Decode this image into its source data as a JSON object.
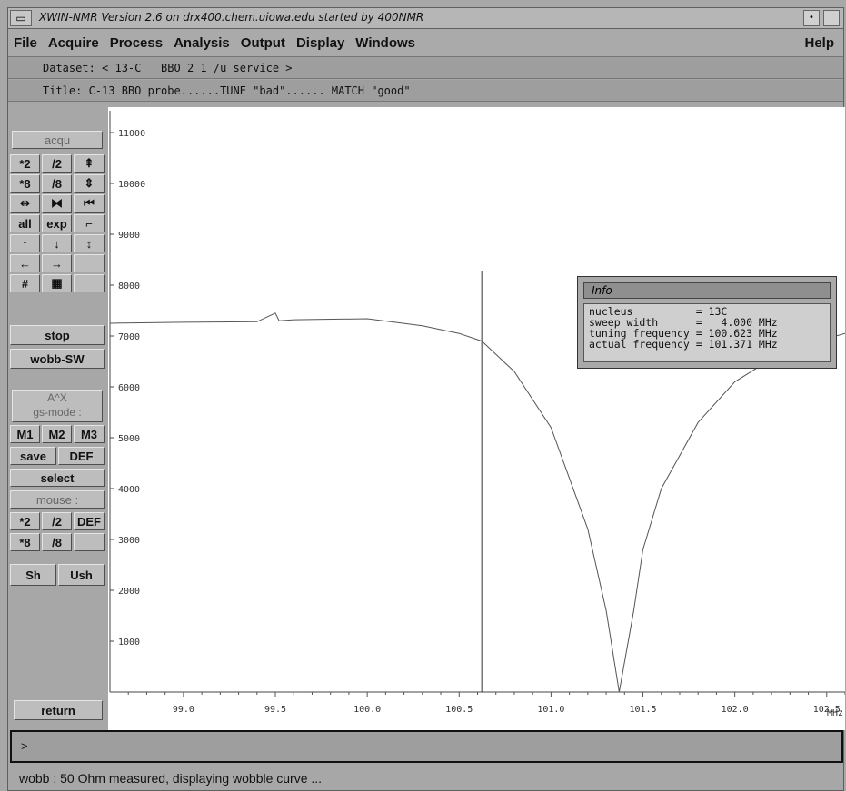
{
  "window": {
    "title": "XWIN-NMR Version  2.6 on drx400.chem.uiowa.edu started by 400NMR",
    "menu_glyph": "▭",
    "minimize_glyph": "•"
  },
  "menu": {
    "items": [
      "File",
      "Acquire",
      "Process",
      "Analysis",
      "Output",
      "Display",
      "Windows"
    ],
    "help": "Help"
  },
  "dataset_line": "Dataset: < 13-C___BBO 2 1 /u service >",
  "title_line": "Title: C-13 BBO probe......TUNE \"bad\"...... MATCH \"good\"",
  "sidebar": {
    "acqu": "acqu",
    "row1": [
      "*2",
      "/2",
      "⇞"
    ],
    "row2": [
      "*8",
      "/8",
      "⇕"
    ],
    "row3": [
      "⇹",
      "⧓",
      "⏮"
    ],
    "row4": [
      "all",
      "exp",
      "⌐"
    ],
    "row5": [
      "↑",
      "↓",
      "↕"
    ],
    "row6": [
      "←",
      "→",
      ""
    ],
    "row7": [
      "#",
      "▦",
      ""
    ],
    "stop": "stop",
    "wobb": "wobb-SW",
    "gs_line1": "A^X",
    "gs_line2": "gs-mode :",
    "m_row": [
      "M1",
      "M2",
      "M3"
    ],
    "save": "save",
    "def": "DEF",
    "select": "select",
    "mouse": "mouse :",
    "mouse_row1": [
      "*2",
      "/2",
      "DEF"
    ],
    "mouse_row2": [
      "*8",
      "/8",
      ""
    ],
    "sh": "Sh",
    "ush": "Ush",
    "return": "return"
  },
  "info_box": {
    "title": "Info",
    "lines": [
      "nucleus          = 13C",
      "sweep width      =   4.000 MHz",
      "tuning frequency = 100.623 MHz",
      "actual frequency = 101.371 MHz"
    ]
  },
  "cmd_prompt": ">",
  "status": "wobb : 50 Ohm measured, displaying wobble curve ...",
  "chart_data": {
    "type": "line",
    "x_unit": "MHz",
    "xlim": [
      98.6,
      102.6
    ],
    "ylim": [
      0,
      11500
    ],
    "x_ticks": [
      "99.0",
      "99.5",
      "100.0",
      "100.5",
      "101.0",
      "101.5",
      "102.0",
      "102.5"
    ],
    "y_ticks": [
      "1000",
      "2000",
      "3000",
      "4000",
      "5000",
      "6000",
      "7000",
      "8000",
      "9000",
      "10000",
      "11000"
    ],
    "tuning_marker": 100.623,
    "series": [
      {
        "x": [
          98.6,
          99.0,
          99.4,
          99.5,
          99.52,
          99.6,
          100.0,
          100.3,
          100.5,
          100.623,
          100.8,
          101.0,
          101.2,
          101.3,
          101.371,
          101.45,
          101.5,
          101.6,
          101.8,
          102.0,
          102.2,
          102.4,
          102.6
        ],
        "y": [
          7250,
          7270,
          7280,
          7450,
          7300,
          7320,
          7340,
          7200,
          7050,
          6900,
          6300,
          5200,
          3200,
          1600,
          0,
          1600,
          2800,
          4000,
          5300,
          6100,
          6550,
          6850,
          7050
        ]
      }
    ]
  }
}
